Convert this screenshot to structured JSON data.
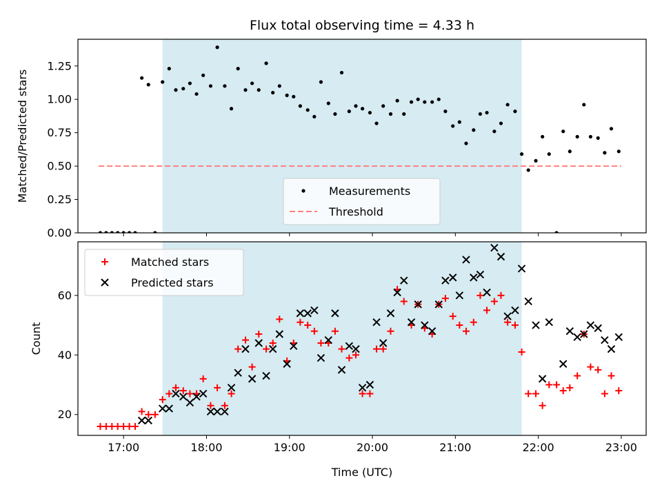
{
  "title": "Flux total observing time = 4.33 h",
  "xlabel": "Time (UTC)",
  "colors": {
    "shade": "#add8e6",
    "measurement": "#000000",
    "threshold": "#ff7f7f",
    "matched": "#ff0000",
    "predicted": "#000000"
  },
  "chart_data": [
    {
      "type": "scatter",
      "ylabel": "Matched/Predicted stars",
      "xlim": [
        16.45,
        23.3
      ],
      "ylim": [
        0,
        1.45
      ],
      "x_ticks": [
        "17:00",
        "18:00",
        "19:00",
        "20:00",
        "21:00",
        "22:00",
        "23:00"
      ],
      "y_ticks": [
        "0.00",
        "0.25",
        "0.50",
        "0.75",
        "1.00",
        "1.25"
      ],
      "shaded_span": [
        17.47,
        21.8
      ],
      "threshold": {
        "name": "Threshold",
        "y": 0.5,
        "x_range": [
          16.7,
          23.0
        ]
      },
      "legend": {
        "position": "lower-center"
      },
      "series": [
        {
          "name": "Measurements",
          "points": [
            [
              16.72,
              0.0
            ],
            [
              16.79,
              0.0
            ],
            [
              16.86,
              0.0
            ],
            [
              16.93,
              0.0
            ],
            [
              17.0,
              0.0
            ],
            [
              17.07,
              0.0
            ],
            [
              17.14,
              0.0
            ],
            [
              17.22,
              1.16
            ],
            [
              17.3,
              1.11
            ],
            [
              17.38,
              0.0
            ],
            [
              17.47,
              1.13
            ],
            [
              17.55,
              1.23
            ],
            [
              17.63,
              1.07
            ],
            [
              17.72,
              1.08
            ],
            [
              17.8,
              1.12
            ],
            [
              17.88,
              1.04
            ],
            [
              17.96,
              1.18
            ],
            [
              18.05,
              1.1
            ],
            [
              18.13,
              1.39
            ],
            [
              18.22,
              1.1
            ],
            [
              18.3,
              0.93
            ],
            [
              18.38,
              1.23
            ],
            [
              18.47,
              1.07
            ],
            [
              18.55,
              1.12
            ],
            [
              18.63,
              1.07
            ],
            [
              18.72,
              1.27
            ],
            [
              18.8,
              1.05
            ],
            [
              18.88,
              1.1
            ],
            [
              18.97,
              1.03
            ],
            [
              19.05,
              1.02
            ],
            [
              19.13,
              0.95
            ],
            [
              19.22,
              0.92
            ],
            [
              19.3,
              0.87
            ],
            [
              19.38,
              1.13
            ],
            [
              19.47,
              0.97
            ],
            [
              19.55,
              0.89
            ],
            [
              19.63,
              1.2
            ],
            [
              19.72,
              0.91
            ],
            [
              19.8,
              0.95
            ],
            [
              19.88,
              0.93
            ],
            [
              19.97,
              0.9
            ],
            [
              20.05,
              0.82
            ],
            [
              20.13,
              0.95
            ],
            [
              20.22,
              0.89
            ],
            [
              20.3,
              0.99
            ],
            [
              20.38,
              0.89
            ],
            [
              20.47,
              0.98
            ],
            [
              20.55,
              1.0
            ],
            [
              20.63,
              0.98
            ],
            [
              20.72,
              0.98
            ],
            [
              20.8,
              1.0
            ],
            [
              20.88,
              0.91
            ],
            [
              20.97,
              0.8
            ],
            [
              21.05,
              0.83
            ],
            [
              21.13,
              0.67
            ],
            [
              21.22,
              0.77
            ],
            [
              21.3,
              0.89
            ],
            [
              21.38,
              0.9
            ],
            [
              21.47,
              0.76
            ],
            [
              21.55,
              0.82
            ],
            [
              21.63,
              0.96
            ],
            [
              21.72,
              0.91
            ],
            [
              21.8,
              0.59
            ],
            [
              21.88,
              0.47
            ],
            [
              21.97,
              0.54
            ],
            [
              22.05,
              0.72
            ],
            [
              22.13,
              0.59
            ],
            [
              22.22,
              0.0
            ],
            [
              22.3,
              0.76
            ],
            [
              22.38,
              0.61
            ],
            [
              22.47,
              0.72
            ],
            [
              22.55,
              0.96
            ],
            [
              22.63,
              0.72
            ],
            [
              22.72,
              0.71
            ],
            [
              22.8,
              0.6
            ],
            [
              22.88,
              0.78
            ],
            [
              22.97,
              0.61
            ]
          ]
        }
      ]
    },
    {
      "type": "scatter",
      "ylabel": "Count",
      "xlim": [
        16.45,
        23.3
      ],
      "ylim": [
        13,
        78
      ],
      "x_ticks": [
        "17:00",
        "18:00",
        "19:00",
        "20:00",
        "21:00",
        "22:00",
        "23:00"
      ],
      "y_ticks": [
        "20",
        "40",
        "60"
      ],
      "shaded_span": [
        17.47,
        21.8
      ],
      "legend": {
        "position": "top-left"
      },
      "series": [
        {
          "name": "Matched stars",
          "marker": "plus",
          "points": [
            [
              16.72,
              16
            ],
            [
              16.79,
              16
            ],
            [
              16.86,
              16
            ],
            [
              16.93,
              16
            ],
            [
              17.0,
              16
            ],
            [
              17.07,
              16
            ],
            [
              17.14,
              16
            ],
            [
              17.22,
              21
            ],
            [
              17.3,
              20
            ],
            [
              17.38,
              20
            ],
            [
              17.47,
              25
            ],
            [
              17.55,
              27
            ],
            [
              17.63,
              29
            ],
            [
              17.72,
              28
            ],
            [
              17.8,
              27
            ],
            [
              17.88,
              27
            ],
            [
              17.96,
              32
            ],
            [
              18.05,
              23
            ],
            [
              18.13,
              29
            ],
            [
              18.22,
              23
            ],
            [
              18.3,
              27
            ],
            [
              18.38,
              42
            ],
            [
              18.47,
              45
            ],
            [
              18.55,
              36
            ],
            [
              18.63,
              47
            ],
            [
              18.72,
              42
            ],
            [
              18.8,
              44
            ],
            [
              18.88,
              52
            ],
            [
              18.97,
              38
            ],
            [
              19.05,
              44
            ],
            [
              19.13,
              51
            ],
            [
              19.22,
              50
            ],
            [
              19.3,
              48
            ],
            [
              19.38,
              44
            ],
            [
              19.47,
              44
            ],
            [
              19.55,
              48
            ],
            [
              19.63,
              42
            ],
            [
              19.72,
              39
            ],
            [
              19.8,
              40
            ],
            [
              19.88,
              27
            ],
            [
              19.97,
              27
            ],
            [
              20.05,
              42
            ],
            [
              20.13,
              42
            ],
            [
              20.22,
              48
            ],
            [
              20.3,
              62
            ],
            [
              20.38,
              58
            ],
            [
              20.47,
              50
            ],
            [
              20.55,
              57
            ],
            [
              20.63,
              49
            ],
            [
              20.72,
              47
            ],
            [
              20.8,
              57
            ],
            [
              20.88,
              59
            ],
            [
              20.97,
              53
            ],
            [
              21.05,
              50
            ],
            [
              21.13,
              48
            ],
            [
              21.22,
              51
            ],
            [
              21.3,
              60
            ],
            [
              21.38,
              55
            ],
            [
              21.47,
              58
            ],
            [
              21.55,
              60
            ],
            [
              21.63,
              51
            ],
            [
              21.72,
              50
            ],
            [
              21.8,
              41
            ],
            [
              21.88,
              27
            ],
            [
              21.97,
              27
            ],
            [
              22.05,
              23
            ],
            [
              22.13,
              30
            ],
            [
              22.22,
              30
            ],
            [
              22.3,
              28
            ],
            [
              22.38,
              29
            ],
            [
              22.47,
              33
            ],
            [
              22.55,
              47
            ],
            [
              22.63,
              36
            ],
            [
              22.72,
              35
            ],
            [
              22.8,
              27
            ],
            [
              22.88,
              33
            ],
            [
              22.97,
              28
            ]
          ]
        },
        {
          "name": "Predicted stars",
          "marker": "x",
          "points": [
            [
              17.22,
              18
            ],
            [
              17.3,
              18
            ],
            [
              17.47,
              22
            ],
            [
              17.55,
              22
            ],
            [
              17.63,
              27
            ],
            [
              17.72,
              26
            ],
            [
              17.8,
              24
            ],
            [
              17.88,
              26
            ],
            [
              17.96,
              27
            ],
            [
              18.05,
              21
            ],
            [
              18.13,
              21
            ],
            [
              18.22,
              21
            ],
            [
              18.3,
              29
            ],
            [
              18.38,
              34
            ],
            [
              18.47,
              42
            ],
            [
              18.55,
              32
            ],
            [
              18.63,
              44
            ],
            [
              18.72,
              33
            ],
            [
              18.8,
              42
            ],
            [
              18.88,
              47
            ],
            [
              18.97,
              37
            ],
            [
              19.05,
              43
            ],
            [
              19.13,
              54
            ],
            [
              19.22,
              54
            ],
            [
              19.3,
              55
            ],
            [
              19.38,
              39
            ],
            [
              19.47,
              45
            ],
            [
              19.55,
              54
            ],
            [
              19.63,
              35
            ],
            [
              19.72,
              43
            ],
            [
              19.8,
              42
            ],
            [
              19.88,
              29
            ],
            [
              19.97,
              30
            ],
            [
              20.05,
              51
            ],
            [
              20.13,
              44
            ],
            [
              20.22,
              54
            ],
            [
              20.3,
              61
            ],
            [
              20.38,
              65
            ],
            [
              20.47,
              51
            ],
            [
              20.55,
              57
            ],
            [
              20.63,
              50
            ],
            [
              20.72,
              48
            ],
            [
              20.8,
              57
            ],
            [
              20.88,
              65
            ],
            [
              20.97,
              66
            ],
            [
              21.05,
              60
            ],
            [
              21.13,
              72
            ],
            [
              21.22,
              66
            ],
            [
              21.3,
              67
            ],
            [
              21.38,
              61
            ],
            [
              21.47,
              76
            ],
            [
              21.55,
              73
            ],
            [
              21.63,
              53
            ],
            [
              21.72,
              55
            ],
            [
              21.8,
              69
            ],
            [
              21.88,
              58
            ],
            [
              21.97,
              50
            ],
            [
              22.05,
              32
            ],
            [
              22.13,
              51
            ],
            [
              22.3,
              37
            ],
            [
              22.38,
              48
            ],
            [
              22.47,
              46
            ],
            [
              22.55,
              47
            ],
            [
              22.63,
              50
            ],
            [
              22.72,
              49
            ],
            [
              22.8,
              45
            ],
            [
              22.88,
              42
            ],
            [
              22.97,
              46
            ]
          ]
        }
      ]
    }
  ]
}
